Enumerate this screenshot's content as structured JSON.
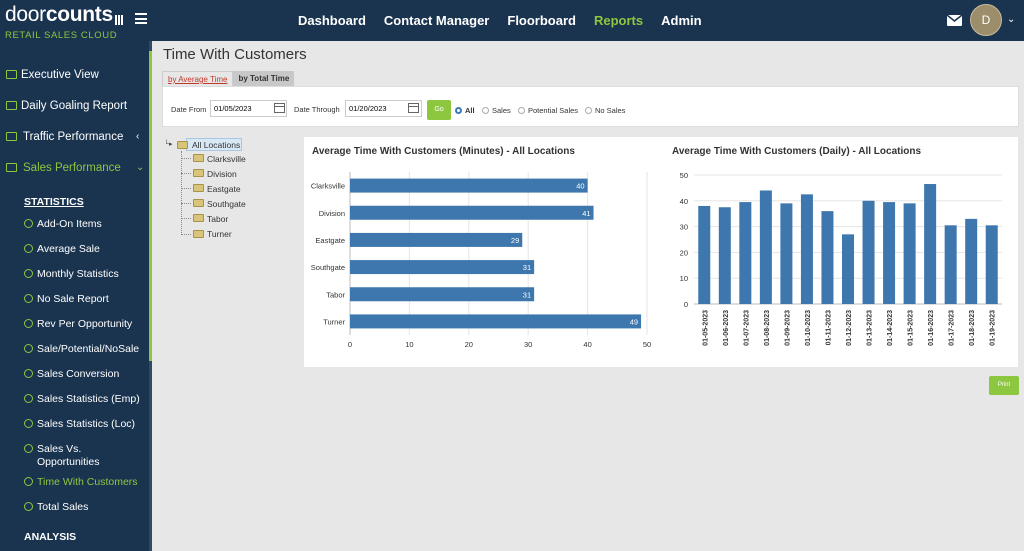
{
  "brand": {
    "name_light": "door",
    "name_bold": "counts",
    "tagline": "RETAIL SALES CLOUD"
  },
  "nav": [
    "Dashboard",
    "Contact Manager",
    "Floorboard",
    "Reports",
    "Admin"
  ],
  "nav_active": "Reports",
  "user": {
    "initial": "D"
  },
  "sidebar": {
    "items": [
      {
        "label": "Executive View"
      },
      {
        "label": "Daily Goaling Report"
      },
      {
        "label": "Traffic Performance"
      },
      {
        "label": "Sales Performance"
      }
    ],
    "statistics_heading": "STATISTICS",
    "statistics": [
      "Add-On Items",
      "Average Sale",
      "Monthly Statistics",
      "No Sale Report",
      "Rev Per Opportunity",
      "Sale/Potential/NoSale",
      "Sales Conversion",
      "Sales Statistics (Emp)",
      "Sales Statistics (Loc)",
      "Sales Vs. Opportunities",
      "Time With Customers",
      "Total Sales"
    ],
    "active_statistic": "Time With Customers",
    "analysis_heading": "ANALYSIS"
  },
  "page": {
    "title": "Time With Customers"
  },
  "tabs": [
    "by Average Time",
    "by Total Time"
  ],
  "filters": {
    "date_from_label": "Date From",
    "date_from": "01/05/2023",
    "date_through_label": "Date Through",
    "date_through": "01/20/2023",
    "go_label": "Go",
    "options": [
      "All",
      "Sales",
      "Potential Sales",
      "No Sales"
    ],
    "selected": "All"
  },
  "tree": {
    "root": "All Locations",
    "children": [
      "Clarksville",
      "Division",
      "Eastgate",
      "Southgate",
      "Tabor",
      "Turner"
    ]
  },
  "print_label": "Print",
  "colors": {
    "bar": "#3d77ae",
    "accent": "#8dc63f",
    "nav_bg": "#1a3450"
  },
  "chart_data": [
    {
      "type": "bar",
      "orientation": "horizontal",
      "title": "Average Time With Customers (Minutes) - All Locations",
      "categories": [
        "Clarksville",
        "Division",
        "Eastgate",
        "Southgate",
        "Tabor",
        "Turner"
      ],
      "values": [
        40,
        41,
        29,
        31,
        31,
        49
      ],
      "xlim": [
        0,
        50
      ],
      "xticks": [
        0,
        10,
        20,
        30,
        40,
        50
      ],
      "grid": true
    },
    {
      "type": "bar",
      "title": "Average Time With Customers (Daily) - All Locations",
      "categories": [
        "01-05-2023",
        "01-06-2023",
        "01-07-2023",
        "01-08-2023",
        "01-09-2023",
        "01-10-2023",
        "01-11-2023",
        "01-12-2023",
        "01-13-2023",
        "01-14-2023",
        "01-15-2023",
        "01-16-2023",
        "01-17-2023",
        "01-18-2023",
        "01-19-2023"
      ],
      "values": [
        38,
        37.5,
        39.5,
        44,
        39,
        42.5,
        36,
        27,
        40,
        39.5,
        39,
        46.5,
        30.5,
        33,
        30.5
      ],
      "ylim": [
        0,
        50
      ],
      "yticks": [
        0,
        10,
        20,
        30,
        40,
        50
      ],
      "grid": true
    }
  ]
}
